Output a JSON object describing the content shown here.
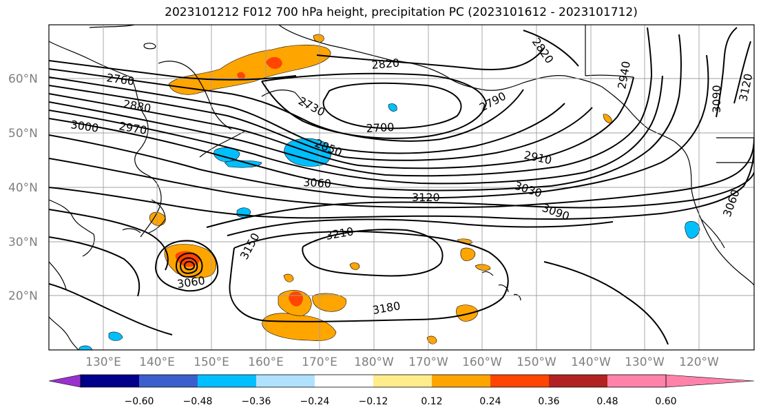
{
  "title": "2023101212 F012 700 hPa height, precipitation PC (2023101612 - 2023101712)",
  "lat_labels": [
    "60°N",
    "50°N",
    "40°N",
    "30°N",
    "20°N"
  ],
  "lon_labels": [
    "130°E",
    "140°E",
    "150°E",
    "160°E",
    "170°E",
    "180°W",
    "170°W",
    "160°W",
    "150°W",
    "140°W",
    "130°W",
    "120°W"
  ],
  "contour_labels": [
    "2760",
    "2880",
    "3000",
    "2970",
    "2730",
    "2700",
    "2820",
    "2790",
    "2820",
    "2940",
    "3090",
    "3120",
    "2850",
    "2910",
    "3060",
    "3030",
    "3120",
    "3090",
    "3060",
    "3150",
    "3210",
    "3180",
    "3060"
  ],
  "colorbar": {
    "ticks": [
      "−0.60",
      "−0.48",
      "−0.36",
      "−0.24",
      "−0.12",
      "0.12",
      "0.24",
      "0.36",
      "0.48",
      "0.60"
    ],
    "colors": [
      "#9932cc",
      "#00008b",
      "#3a5fcd",
      "#00bfff",
      "#b0e2ff",
      "#ffffff",
      "#ffec8b",
      "#ffa500",
      "#ff4500",
      "#b22222",
      "#ff82ab"
    ]
  },
  "colors": {
    "grid": "#a0a0a0",
    "axis_label": "#7f7f7f",
    "contour": "#000000"
  }
}
